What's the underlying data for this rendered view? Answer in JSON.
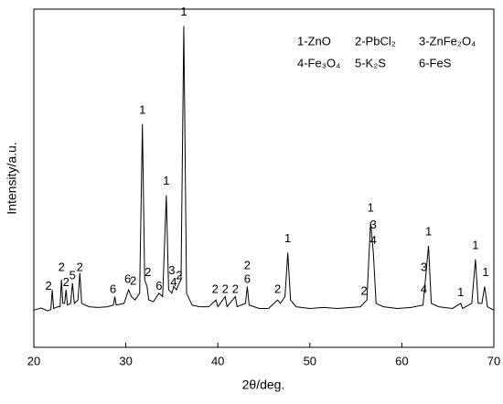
{
  "chart_data": {
    "type": "line",
    "x": [
      20.0,
      20.8,
      21.5,
      21.85,
      22.0,
      22.15,
      22.6,
      22.85,
      23.0,
      23.15,
      23.35,
      23.5,
      23.65,
      24.0,
      24.2,
      24.4,
      24.8,
      25.0,
      25.2,
      26.0,
      27.0,
      28.0,
      28.65,
      28.8,
      28.95,
      29.8,
      30.3,
      30.6,
      31.0,
      31.5,
      31.8,
      32.05,
      32.3,
      32.5,
      33.0,
      33.6,
      34.0,
      34.4,
      34.65,
      35.0,
      35.2,
      35.5,
      35.8,
      36.0,
      36.3,
      36.6,
      37.2,
      38.0,
      39.0,
      39.8,
      40.0,
      40.8,
      41.0,
      41.9,
      42.1,
      43.0,
      43.2,
      43.4,
      44.5,
      45.5,
      46.5,
      46.8,
      47.3,
      47.6,
      47.9,
      48.5,
      50.0,
      51.5,
      53.0,
      54.5,
      55.5,
      56.2,
      56.6,
      56.9,
      57.2,
      58.0,
      59.5,
      61.0,
      62.3,
      62.9,
      63.2,
      64.0,
      65.5,
      66.4,
      66.6,
      67.6,
      68.0,
      68.3,
      68.7,
      69.0,
      69.3,
      70.0
    ],
    "series": [
      {
        "color": "#000000",
        "values": [
          11,
          11.6,
          10.8,
          11.2,
          17,
          11.5,
          12,
          12,
          20,
          13,
          13,
          17,
          12.5,
          13,
          19,
          13,
          14,
          22,
          13,
          12,
          11.8,
          12,
          12.5,
          15,
          12.5,
          13,
          17,
          15,
          14,
          16,
          66,
          20,
          18,
          14,
          13.5,
          16,
          15,
          45,
          17,
          16,
          18,
          17,
          19,
          20,
          95,
          16,
          12.5,
          12,
          12,
          14,
          12,
          15,
          12,
          15,
          12,
          13,
          18,
          12.5,
          11.5,
          11.5,
          14,
          13,
          15,
          28,
          14,
          12,
          11.5,
          11.8,
          11.5,
          11.8,
          12,
          14,
          37,
          28,
          13,
          12,
          11.5,
          11.8,
          12.5,
          30,
          13,
          12,
          11.5,
          13,
          11.5,
          13,
          26,
          13,
          13,
          18,
          12,
          11
        ]
      }
    ],
    "xlim": [
      20,
      70
    ],
    "xticks": [
      20,
      30,
      40,
      50,
      60,
      70
    ],
    "ylim": [
      0,
      100
    ],
    "xlabel": "2θ/deg.",
    "ylabel": "Intensity/a.u.",
    "legend_labels": [
      [
        "1-ZnO",
        "2-PbCl₂",
        "3-ZnFe₂O₄"
      ],
      [
        "4-Fe₃O₄",
        "5-K₂S",
        "6-FeS"
      ]
    ],
    "annotations": [
      {
        "text": "2",
        "x": 21.6,
        "y": 18
      },
      {
        "text": "2",
        "x": 23.0,
        "y": 23.5
      },
      {
        "text": "2",
        "x": 23.5,
        "y": 19
      },
      {
        "text": "5",
        "x": 24.2,
        "y": 21
      },
      {
        "text": "2",
        "x": 25.0,
        "y": 23.5
      },
      {
        "text": "6",
        "x": 28.6,
        "y": 17
      },
      {
        "text": "6",
        "x": 30.2,
        "y": 20
      },
      {
        "text": "2",
        "x": 30.8,
        "y": 19.5
      },
      {
        "text": "1",
        "x": 31.8,
        "y": 70
      },
      {
        "text": "2",
        "x": 32.4,
        "y": 22
      },
      {
        "text": "6",
        "x": 33.6,
        "y": 18
      },
      {
        "text": "1",
        "x": 34.4,
        "y": 49
      },
      {
        "text": "3",
        "x": 35.0,
        "y": 22.5
      },
      {
        "text": "4",
        "x": 35.2,
        "y": 19
      },
      {
        "text": "2",
        "x": 35.8,
        "y": 21
      },
      {
        "text": "1",
        "x": 36.3,
        "y": 99
      },
      {
        "text": "2",
        "x": 39.7,
        "y": 17
      },
      {
        "text": "2",
        "x": 40.8,
        "y": 17
      },
      {
        "text": "2",
        "x": 41.9,
        "y": 17
      },
      {
        "text": "2",
        "x": 43.2,
        "y": 24
      },
      {
        "text": "6",
        "x": 43.2,
        "y": 20
      },
      {
        "text": "2",
        "x": 46.5,
        "y": 17
      },
      {
        "text": "1",
        "x": 47.6,
        "y": 32
      },
      {
        "text": "2",
        "x": 55.9,
        "y": 16.5
      },
      {
        "text": "1",
        "x": 56.6,
        "y": 41
      },
      {
        "text": "3",
        "x": 56.9,
        "y": 36
      },
      {
        "text": "4",
        "x": 56.9,
        "y": 31.5
      },
      {
        "text": "1",
        "x": 62.9,
        "y": 34
      },
      {
        "text": "3",
        "x": 62.4,
        "y": 23.5
      },
      {
        "text": "4",
        "x": 62.4,
        "y": 17
      },
      {
        "text": "1",
        "x": 66.4,
        "y": 16
      },
      {
        "text": "1",
        "x": 68.0,
        "y": 30
      },
      {
        "text": "1",
        "x": 69.1,
        "y": 22
      }
    ]
  }
}
